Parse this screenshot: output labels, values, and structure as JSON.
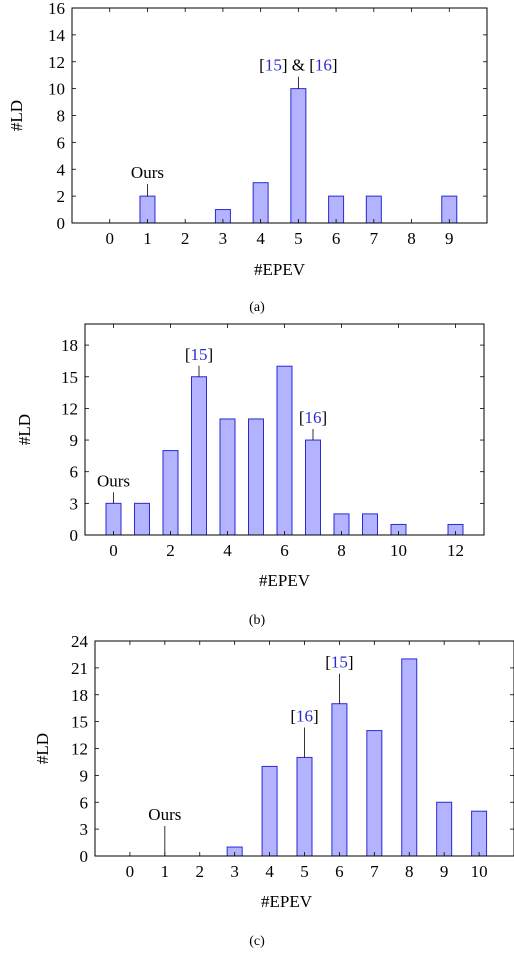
{
  "chart_data": [
    {
      "type": "bar",
      "caption": "(a)",
      "xlabel": "#EPEV",
      "ylabel": "#LD",
      "x": [
        1,
        3,
        4,
        5,
        6,
        7,
        9
      ],
      "values": [
        2,
        1,
        3,
        10,
        2,
        2,
        2
      ],
      "xlim": [
        -1,
        10
      ],
      "ylim": [
        0,
        16
      ],
      "xticks": [
        0,
        1,
        2,
        3,
        4,
        5,
        6,
        7,
        8,
        9
      ],
      "yticks": [
        0,
        2,
        4,
        6,
        8,
        10,
        12,
        14,
        16
      ],
      "annotations": [
        {
          "x": 1,
          "y": 2,
          "parts": [
            {
              "text": "Ours",
              "cite": false
            }
          ]
        },
        {
          "x": 5,
          "y": 10,
          "parts": [
            {
              "text": "[",
              "cite": false
            },
            {
              "text": "15",
              "cite": true
            },
            {
              "text": "] & [",
              "cite": false
            },
            {
              "text": "16",
              "cite": true
            },
            {
              "text": "]",
              "cite": false
            }
          ]
        }
      ]
    },
    {
      "type": "bar",
      "caption": "(b)",
      "xlabel": "#EPEV",
      "ylabel": "#LD",
      "x": [
        0,
        1,
        2,
        3,
        4,
        5,
        6,
        7,
        8,
        9,
        10,
        12
      ],
      "values": [
        3,
        3,
        8,
        15,
        11,
        11,
        16,
        9,
        2,
        2,
        1,
        1
      ],
      "xlim": [
        -1,
        13
      ],
      "ylim": [
        0,
        20
      ],
      "xticks": [
        0,
        2,
        4,
        6,
        8,
        10,
        12
      ],
      "yticks": [
        0,
        3,
        6,
        9,
        12,
        15,
        18
      ],
      "annotations": [
        {
          "x": 0,
          "y": 3,
          "parts": [
            {
              "text": "Ours",
              "cite": false
            }
          ]
        },
        {
          "x": 3,
          "y": 15,
          "parts": [
            {
              "text": "[",
              "cite": false
            },
            {
              "text": "15",
              "cite": true
            },
            {
              "text": "]",
              "cite": false
            }
          ]
        },
        {
          "x": 7,
          "y": 9,
          "parts": [
            {
              "text": "[",
              "cite": false
            },
            {
              "text": "16",
              "cite": true
            },
            {
              "text": "]",
              "cite": false
            }
          ]
        }
      ]
    },
    {
      "type": "bar",
      "caption": "(c)",
      "xlabel": "#EPEV",
      "ylabel": "#LD",
      "x": [
        3,
        4,
        5,
        6,
        7,
        8,
        9,
        10
      ],
      "values": [
        1,
        10,
        11,
        17,
        14,
        22,
        6,
        5
      ],
      "xlim": [
        -1,
        11
      ],
      "ylim": [
        0,
        24
      ],
      "xticks": [
        0,
        1,
        2,
        3,
        4,
        5,
        6,
        7,
        8,
        9,
        10
      ],
      "yticks": [
        0,
        3,
        6,
        9,
        12,
        15,
        18,
        21,
        24
      ],
      "annotations": [
        {
          "x": 1,
          "y": 0,
          "parts": [
            {
              "text": "Ours",
              "cite": false
            }
          ]
        },
        {
          "x": 5,
          "y": 11,
          "parts": [
            {
              "text": "[",
              "cite": false
            },
            {
              "text": "16",
              "cite": true
            },
            {
              "text": "]",
              "cite": false
            }
          ]
        },
        {
          "x": 6,
          "y": 17,
          "parts": [
            {
              "text": "[",
              "cite": false
            },
            {
              "text": "15",
              "cite": true
            },
            {
              "text": "]",
              "cite": false
            }
          ]
        }
      ]
    }
  ]
}
